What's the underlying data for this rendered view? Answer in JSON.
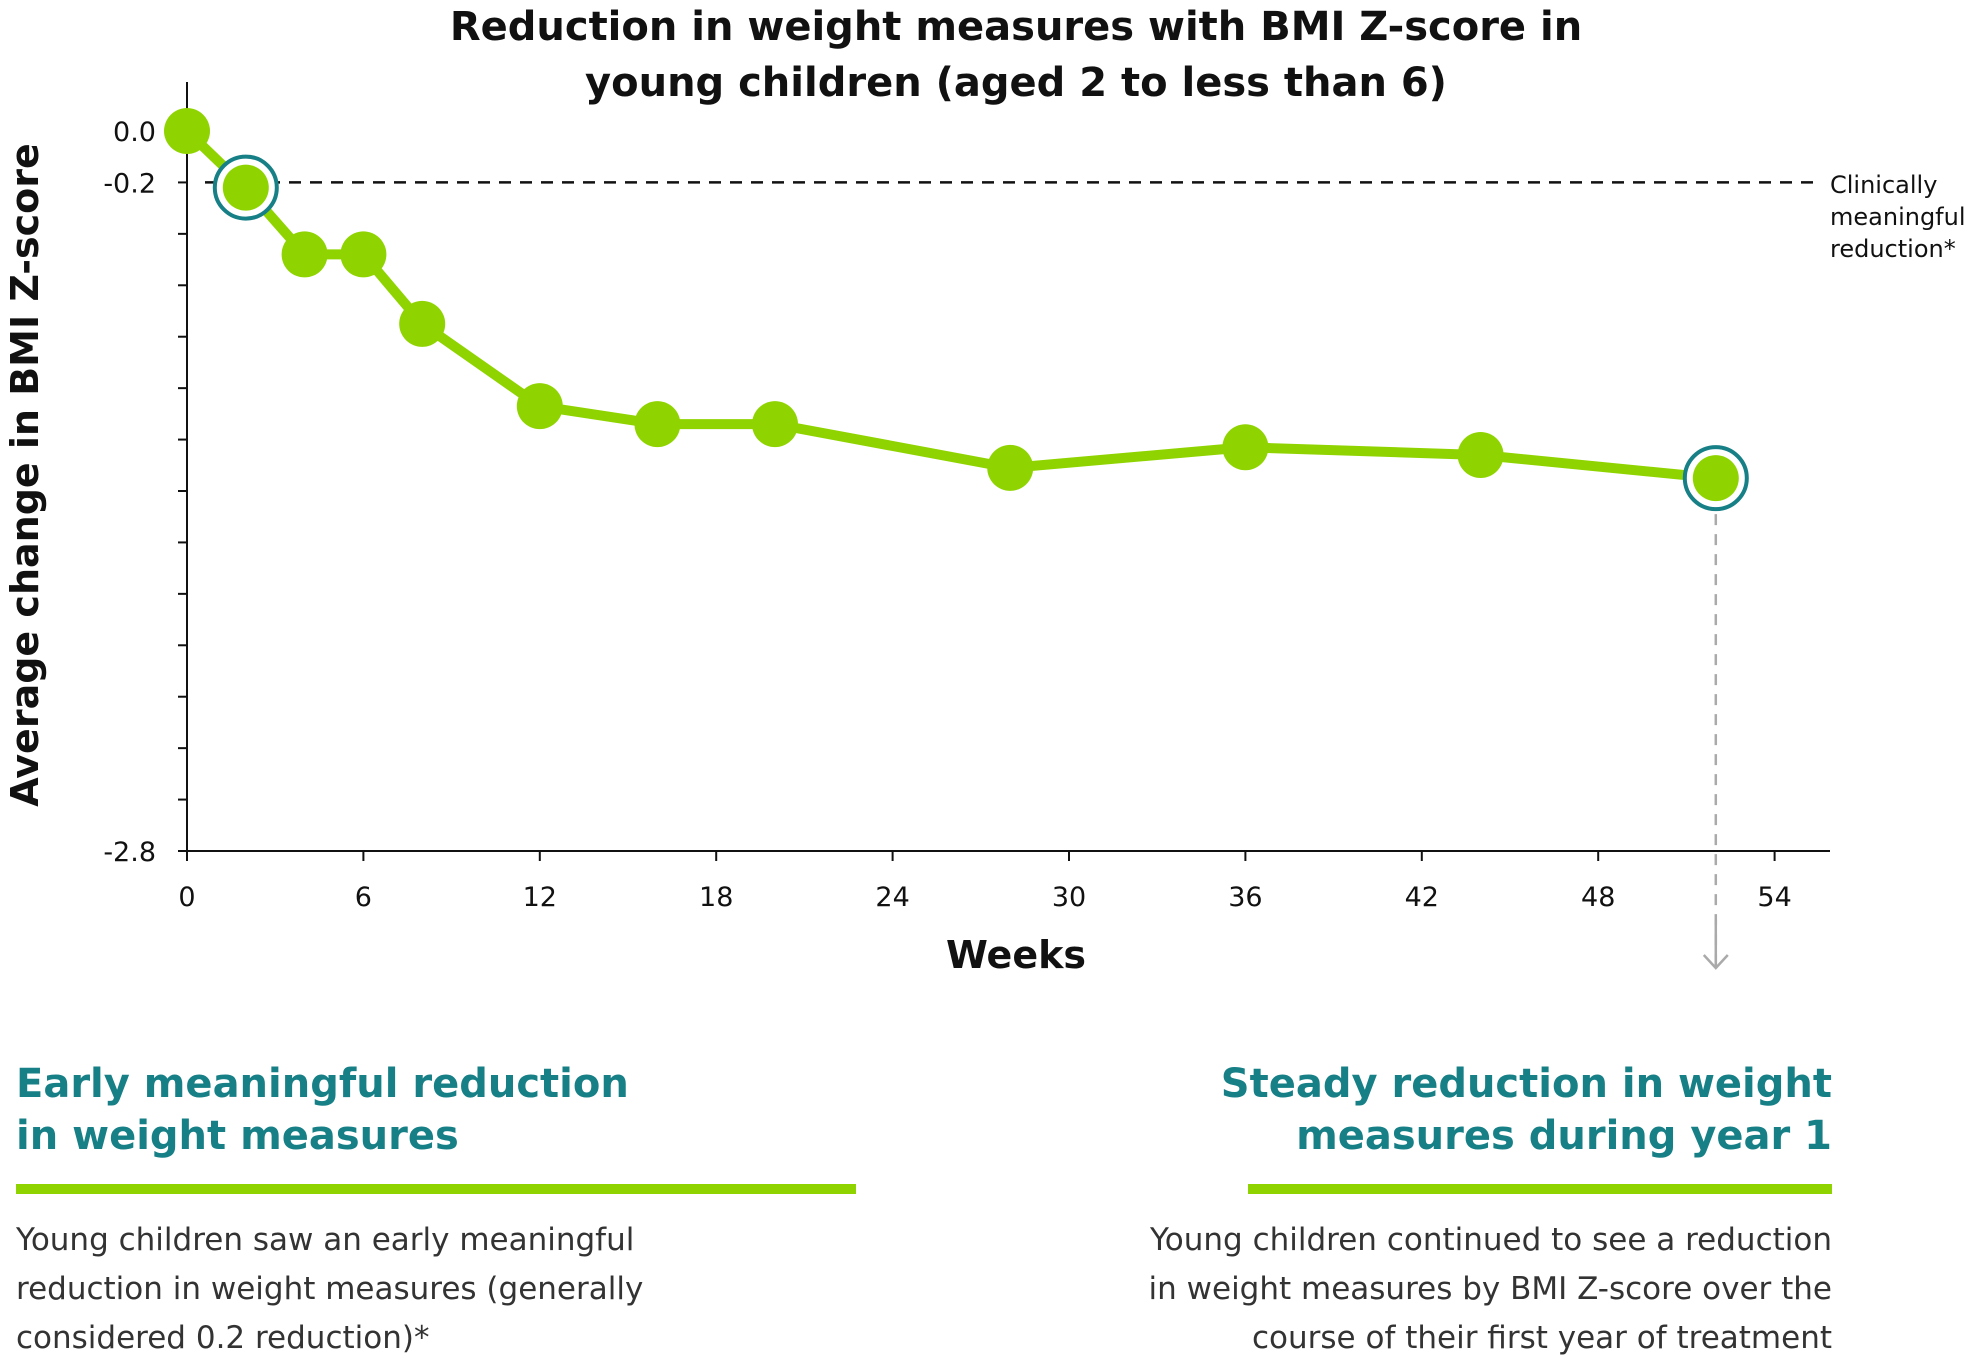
{
  "colors": {
    "series": "#8fd400",
    "highlight_ring": "#177f86",
    "heading": "#177f86",
    "body_text": "#333333",
    "axis": "#111111",
    "reference_line": "#111111",
    "drop_line": "#aaaaaa"
  },
  "chart_data": {
    "type": "line",
    "title_lines": [
      "Reduction in weight measures with BMI Z-score in",
      "young children (aged 2 to less than 6)"
    ],
    "xlabel": "Weeks",
    "ylabel": "Average change in BMI Z-score",
    "xlim": [
      0,
      56
    ],
    "ylim": [
      -2.8,
      0.0
    ],
    "x_ticks": [
      0,
      6,
      12,
      18,
      24,
      30,
      36,
      42,
      48,
      54
    ],
    "y_tick_labels": [
      "0.0",
      "-0.2",
      "-2.8"
    ],
    "y_tick_values": [
      0.0,
      -0.2,
      -0.4,
      -0.6,
      -0.8,
      -1.0,
      -1.2,
      -1.4,
      -1.6,
      -1.8,
      -2.0,
      -2.2,
      -2.4,
      -2.6,
      -2.8
    ],
    "series": [
      {
        "x": [
          0,
          2,
          4,
          6,
          8,
          12,
          16,
          20,
          28,
          36,
          44,
          52
        ],
        "y": [
          0.0,
          -0.22,
          -0.48,
          -0.48,
          -0.75,
          -1.07,
          -1.14,
          -1.14,
          -1.31,
          -1.23,
          -1.26,
          -1.35
        ]
      }
    ],
    "highlighted_points": [
      1,
      11
    ],
    "reference_line": {
      "y": -0.2,
      "label_lines": [
        "Clinically",
        "meaningful",
        "reduction*"
      ]
    },
    "drop_line": {
      "x": 52,
      "arrow": "down"
    }
  },
  "panels": {
    "left": {
      "heading_lines": [
        "Early meaningful reduction",
        "in weight measures"
      ],
      "body_lines": [
        "Young children saw an early meaningful",
        "reduction in weight measures (generally",
        "considered 0.2 reduction)*"
      ]
    },
    "right": {
      "heading_lines": [
        "Steady reduction in weight",
        "measures during year 1"
      ],
      "body_lines": [
        "Young children continued to see a reduction",
        "in weight measures by BMI Z-score over the",
        "course of their first year of treatment"
      ]
    }
  }
}
